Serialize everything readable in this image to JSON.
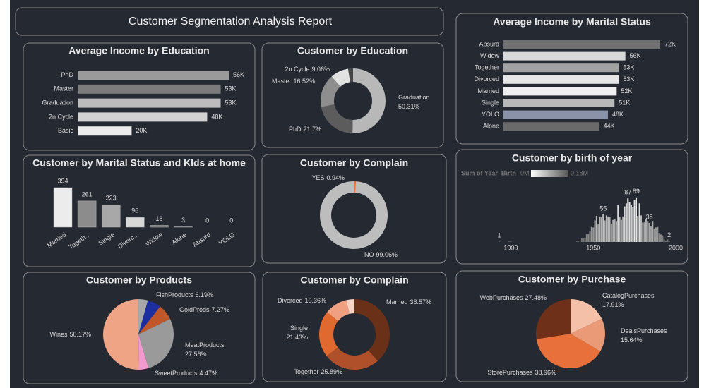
{
  "title": "Customer Segmentation Analysis Report",
  "chart_data": [
    {
      "type": "hbar",
      "title": "Average Income by Education",
      "categories": [
        "PhD",
        "Master",
        "Graduation",
        "2n Cycle",
        "Basic"
      ],
      "values": [
        56000,
        53000,
        53000,
        48000,
        20000
      ],
      "value_labels": [
        "56K",
        "53K",
        "53K",
        "48K",
        "20K"
      ],
      "colors": [
        "#9a9a9a",
        "#7c7c7c",
        "#bcbcbc",
        "#d2d2d2",
        "#ececec"
      ]
    },
    {
      "type": "donut",
      "title": "Customer by Education",
      "categories": [
        "Graduation",
        "PhD",
        "Master",
        "2n Cycle",
        null
      ],
      "values": [
        50.31,
        21.7,
        16.52,
        9.06,
        2.41
      ],
      "value_labels": [
        "50.31%",
        "21.7%",
        "16.52%",
        "9.06%",
        null
      ],
      "colors": [
        "#b8b8b8",
        "#5c5c5c",
        "#8e8e8e",
        "#e2e2e2",
        "#444444"
      ]
    },
    {
      "type": "hbar",
      "title": "Average Income by Marital Status",
      "categories": [
        "Absurd",
        "Widow",
        "Together",
        "Divorced",
        "Married",
        "Single",
        "YOLO",
        "Alone"
      ],
      "values": [
        72000,
        56000,
        53000,
        53000,
        52000,
        51000,
        48000,
        44000
      ],
      "value_labels": [
        "72K",
        "56K",
        "53K",
        "53K",
        "52K",
        "51K",
        "48K",
        "44K"
      ],
      "colors": [
        "#707070",
        "#d8d8d8",
        "#a2a2a2",
        "#e6e6e6",
        "#f0f0f0",
        "#b8b8b8",
        "#8a93a8",
        "#6a6a6a"
      ]
    },
    {
      "type": "bar",
      "title": "Customer by Marital Status and KIds at home",
      "categories": [
        "Married",
        "Togeth...",
        "Single",
        "Divorc...",
        "Widow",
        "Alone",
        "Absurd",
        "YOLO"
      ],
      "values": [
        394,
        261,
        223,
        96,
        18,
        3,
        0,
        0
      ],
      "colors": [
        "#ececec",
        "#8c8c8c",
        "#a8a8a8",
        "#d8d8d8",
        "#707070",
        "#9a9a9a",
        "#9a9a9a",
        "#9a9a9a"
      ]
    },
    {
      "type": "donut",
      "title": "Customer by Complain",
      "categories": [
        "YES",
        "NO"
      ],
      "values": [
        0.94,
        99.06
      ],
      "value_labels": [
        "0.94%",
        "99.06%"
      ],
      "colors": [
        "#e8703a",
        "#bdbdbd"
      ]
    },
    {
      "type": "bar",
      "title": "Customer by birth of year",
      "x": [
        1893,
        1899,
        1900,
        1940,
        1941,
        1943,
        1944,
        1945,
        1946,
        1947,
        1948,
        1949,
        1950,
        1951,
        1952,
        1953,
        1954,
        1955,
        1956,
        1957,
        1958,
        1959,
        1960,
        1961,
        1962,
        1963,
        1964,
        1965,
        1966,
        1967,
        1968,
        1969,
        1970,
        1971,
        1972,
        1973,
        1974,
        1975,
        1976,
        1977,
        1978,
        1979,
        1980,
        1981,
        1982,
        1983,
        1984,
        1985,
        1986,
        1987,
        1988,
        1989,
        1990,
        1991,
        1992,
        1993,
        1994,
        1995,
        1996
      ],
      "values": [
        1,
        1,
        1,
        1,
        1,
        7,
        7,
        8,
        16,
        16,
        21,
        30,
        29,
        43,
        52,
        35,
        50,
        49,
        55,
        43,
        53,
        51,
        49,
        36,
        44,
        45,
        42,
        74,
        50,
        44,
        51,
        71,
        77,
        87,
        79,
        74,
        69,
        83,
        89,
        52,
        77,
        53,
        39,
        39,
        45,
        42,
        38,
        32,
        42,
        27,
        29,
        30,
        18,
        15,
        13,
        5,
        3,
        5,
        2
      ],
      "value_labels": [
        "1",
        null,
        null,
        null,
        null,
        null,
        null,
        null,
        null,
        null,
        null,
        null,
        null,
        null,
        null,
        null,
        null,
        null,
        "55",
        null,
        null,
        null,
        null,
        null,
        null,
        null,
        null,
        null,
        null,
        null,
        null,
        null,
        null,
        "87",
        null,
        null,
        null,
        null,
        "89",
        null,
        null,
        null,
        null,
        null,
        null,
        null,
        "38",
        null,
        null,
        null,
        null,
        null,
        null,
        null,
        null,
        null,
        null,
        null,
        "2"
      ],
      "xlim": [
        1872,
        2000
      ],
      "xticks": [
        1900,
        1950,
        2000
      ],
      "ylim": [
        0,
        100
      ],
      "legend": {
        "title": "Sum of Year_Birth",
        "min_label": "0M",
        "max_label": "0.18M"
      }
    },
    {
      "type": "pie",
      "title": "Customer by Products",
      "categories": [
        null,
        "FishProducts",
        "GoldProds",
        "MeatProducts",
        "SweetProducts",
        "Wines"
      ],
      "values": [
        4.34,
        6.19,
        7.27,
        27.56,
        4.47,
        50.17
      ],
      "value_labels": [
        null,
        "6.19%",
        "7.27%",
        "27.56%",
        "4.47%",
        "50.17%"
      ],
      "colors": [
        "#a8a8a8",
        "#1c2ea0",
        "#c0572a",
        "#9a9a9a",
        "#f29ad0",
        "#f0a486"
      ]
    },
    {
      "type": "donut",
      "title": "Customer by Complain",
      "categories": [
        "Married",
        "Together",
        "Single",
        "Divorced",
        null
      ],
      "values": [
        38.57,
        25.89,
        21.43,
        10.36,
        3.75
      ],
      "value_labels": [
        "38.57%",
        "25.89%",
        "21.43%",
        "10.36%",
        null
      ],
      "colors": [
        "#6b3018",
        "#b0502a",
        "#e0692f",
        "#f0a080",
        "#f8d4c4"
      ]
    },
    {
      "type": "pie",
      "title": "Customer by Purchase",
      "categories": [
        "CatalogPurchases",
        "DealsPurchases",
        "StorePurchases",
        "WebPurchases"
      ],
      "values": [
        17.91,
        15.64,
        38.96,
        27.48
      ],
      "value_labels": [
        "17.91%",
        "15.64%",
        "38.96%",
        "27.48%"
      ],
      "colors": [
        "#f5c0a8",
        "#eb9a78",
        "#e8703a",
        "#6e3018"
      ]
    }
  ]
}
